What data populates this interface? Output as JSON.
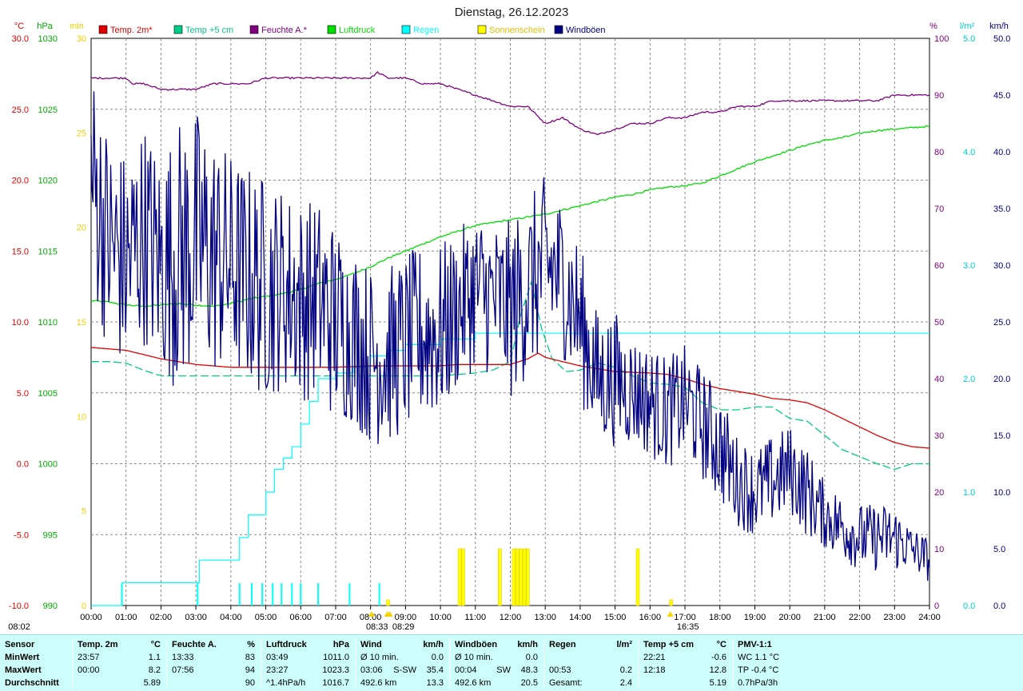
{
  "chart_data": {
    "type": "line",
    "title": "Dienstag, 26.12.2023",
    "x_axis": {
      "range_hours": [
        0,
        24
      ],
      "tick_labels": [
        "00:00",
        "01:00",
        "02:00",
        "03:00",
        "04:00",
        "05:00",
        "06:00",
        "07:00",
        "08:00",
        "09:00",
        "10:00",
        "11:00",
        "12:00",
        "13:00",
        "14:00",
        "15:00",
        "16:00",
        "17:00",
        "18:00",
        "19:00",
        "20:00",
        "21:00",
        "22:00",
        "23:00",
        "24:00"
      ],
      "markers": [
        {
          "label": "08:02",
          "hour": 8.03,
          "color": "#f6d300"
        },
        {
          "label": "08:33",
          "hour": 8.55,
          "color": "#f6d300"
        },
        {
          "label": "08:29",
          "hour": 8.48,
          "color": "#f6d300"
        },
        {
          "label": "16:35",
          "hour": 16.58,
          "color": "#f6d300"
        }
      ]
    },
    "y_axes": [
      {
        "id": "temp",
        "unit": "°C",
        "color": "#e00000",
        "range": [
          -10,
          30
        ],
        "tick_labels": [
          "30.0",
          "25.0",
          "20.0",
          "15.0",
          "10.0",
          "5.0",
          "0.0",
          "-5.0",
          "-10.0"
        ]
      },
      {
        "id": "press",
        "unit": "hPa",
        "color": "#00aa00",
        "range": [
          990,
          1030
        ],
        "tick_labels": [
          "1030",
          "1025",
          "1020",
          "1015",
          "1010",
          "1005",
          "1000",
          "995",
          "990"
        ]
      },
      {
        "id": "sun",
        "unit": "min",
        "color": "#f0d000",
        "range": [
          0,
          30
        ],
        "tick_labels": [
          "30",
          "25",
          "20",
          "15",
          "10",
          "5",
          "0"
        ]
      },
      {
        "id": "hum",
        "unit": "%",
        "color": "#800080",
        "range": [
          0,
          100
        ],
        "tick_labels": [
          "100",
          "90",
          "80",
          "70",
          "60",
          "50",
          "40",
          "30",
          "20",
          "10",
          "0"
        ]
      },
      {
        "id": "rain",
        "unit": "l/m²",
        "color": "#00cccc",
        "range": [
          0,
          5
        ],
        "tick_labels": [
          "5.0",
          "4.0",
          "3.0",
          "2.0",
          "1.0",
          "0.0"
        ]
      },
      {
        "id": "wind",
        "unit": "km/h",
        "color": "#000080",
        "range": [
          0,
          50
        ],
        "tick_labels": [
          "50.0",
          "45.0",
          "40.0",
          "35.0",
          "30.0",
          "25.0",
          "20.0",
          "15.0",
          "10.0",
          "5.0",
          "0.0"
        ]
      }
    ],
    "legend": [
      {
        "name": "Temp. 2m*",
        "color": "#e00000"
      },
      {
        "name": "Temp +5 cm",
        "color": "#00cc88"
      },
      {
        "name": "Feuchte A.*",
        "color": "#800080"
      },
      {
        "name": "Luftdruck",
        "color": "#00dd00"
      },
      {
        "name": "Regen",
        "color": "#00ffff"
      },
      {
        "name": "Sonnenschein",
        "color": "#ffff00"
      },
      {
        "name": "Windböen",
        "color": "#000080"
      }
    ],
    "series": [
      {
        "name": "Temp. 2m*",
        "axis": "temp",
        "color": "#e00000",
        "x": [
          0,
          0.5,
          1,
          1.5,
          2,
          2.5,
          3,
          4,
          5,
          6,
          7,
          8,
          9,
          10,
          10.5,
          11,
          12,
          12.5,
          12.8,
          13,
          13.5,
          14,
          15,
          16,
          16.5,
          17,
          17.5,
          18,
          18.5,
          19,
          19.5,
          20,
          20.5,
          21,
          21.5,
          22,
          22.5,
          23,
          23.5,
          24
        ],
        "y": [
          8.2,
          8.1,
          8.0,
          7.7,
          7.4,
          7.2,
          7.0,
          6.8,
          6.8,
          6.8,
          6.8,
          6.9,
          6.9,
          6.9,
          7.0,
          7.0,
          7.0,
          7.4,
          7.8,
          7.5,
          7.2,
          6.9,
          6.5,
          6.4,
          6.3,
          6.0,
          5.6,
          5.3,
          5.1,
          4.9,
          4.6,
          4.5,
          4.3,
          3.8,
          3.2,
          2.6,
          2.0,
          1.5,
          1.2,
          1.1
        ]
      },
      {
        "name": "Temp +5 cm",
        "axis": "temp",
        "color": "#00cc88",
        "dashed": true,
        "x": [
          0,
          0.5,
          1,
          1.5,
          2,
          2.5,
          3,
          4,
          5,
          6,
          7,
          8,
          9,
          10,
          11,
          11.5,
          12,
          12.3,
          12.6,
          12.9,
          13.2,
          13.6,
          14,
          14.5,
          15,
          15.5,
          16,
          16.5,
          17,
          17.5,
          18,
          18.5,
          19,
          19.5,
          20,
          20.5,
          21,
          21.5,
          22,
          22.5,
          23,
          23.5,
          24
        ],
        "y": [
          7.2,
          7.2,
          7.1,
          6.6,
          6.2,
          6.2,
          6.2,
          6.2,
          6.2,
          6.2,
          6.2,
          6.2,
          6.2,
          6.2,
          6.4,
          6.6,
          7.2,
          10.5,
          12.8,
          9.5,
          7.4,
          6.5,
          6.6,
          7.1,
          6.8,
          6.2,
          5.7,
          5.6,
          5.4,
          4.3,
          3.8,
          3.8,
          4.0,
          4.0,
          3.2,
          3.0,
          2.0,
          1.0,
          0.5,
          0.0,
          -0.4,
          0.0,
          0.0
        ]
      },
      {
        "name": "Feuchte A.*",
        "axis": "hum",
        "color": "#800080",
        "x": [
          0,
          0.5,
          1,
          1.2,
          1.5,
          2,
          2.5,
          3,
          3.5,
          4,
          4.5,
          5,
          6,
          7,
          8,
          8.2,
          8.5,
          9,
          9.5,
          10,
          10.5,
          11,
          11.5,
          12,
          12.5,
          13,
          13.5,
          14,
          14.5,
          15,
          15.5,
          16,
          16.5,
          17,
          17.5,
          18,
          18.5,
          19,
          19.5,
          20,
          20.5,
          21,
          21.5,
          22,
          22.5,
          23,
          23.5,
          24
        ],
        "y": [
          93,
          93,
          93,
          92,
          92,
          91,
          91,
          91,
          92,
          92,
          92,
          93,
          93,
          93,
          93,
          94,
          93,
          93,
          92,
          92,
          91,
          90,
          89,
          88,
          88,
          85,
          86,
          84,
          83,
          84,
          85,
          85,
          86,
          86,
          87,
          87,
          88,
          88,
          89,
          89,
          89,
          89,
          89,
          89,
          89,
          90,
          90,
          90
        ]
      },
      {
        "name": "Luftdruck",
        "axis": "press",
        "color": "#00dd00",
        "x": [
          0,
          0.5,
          1,
          1.5,
          2,
          2.5,
          3,
          3.5,
          4,
          4.5,
          5,
          5.5,
          6,
          6.5,
          7,
          7.5,
          8,
          8.5,
          9,
          9.5,
          10,
          10.5,
          11,
          11.5,
          12,
          12.5,
          13,
          13.5,
          14,
          14.5,
          15,
          15.5,
          16,
          16.5,
          17,
          17.5,
          18,
          18.5,
          19,
          19.5,
          20,
          20.5,
          21,
          21.5,
          22,
          22.5,
          23,
          23.5,
          24
        ],
        "y": [
          1011.5,
          1011.4,
          1011.2,
          1011.1,
          1011.2,
          1011.3,
          1011.2,
          1011.1,
          1011.3,
          1011.6,
          1011.8,
          1012.0,
          1012.3,
          1012.7,
          1013.0,
          1013.4,
          1013.9,
          1014.5,
          1015.0,
          1015.5,
          1016.0,
          1016.4,
          1016.8,
          1017.0,
          1017.2,
          1017.4,
          1017.6,
          1017.9,
          1018.2,
          1018.5,
          1018.8,
          1019.0,
          1019.3,
          1019.5,
          1019.6,
          1019.8,
          1020.3,
          1020.8,
          1021.3,
          1021.7,
          1022.1,
          1022.5,
          1022.8,
          1023.0,
          1023.3,
          1023.5,
          1023.6,
          1023.7,
          1023.8
        ]
      },
      {
        "name": "Regen",
        "axis": "rain",
        "color": "#00ffff",
        "step": true,
        "x": [
          0,
          0.88,
          1.0,
          2.0,
          3.05,
          3.1,
          4.0,
          4.25,
          4.5,
          4.75,
          5.0,
          5.25,
          5.5,
          5.75,
          6.0,
          6.25,
          6.5,
          7.0,
          7.5,
          8.0,
          8.5,
          9.0,
          10.0,
          11.0,
          24.0
        ],
        "y": [
          0,
          0.2,
          0.2,
          0.2,
          0.2,
          0.4,
          0.4,
          0.6,
          0.8,
          0.8,
          1.0,
          1.2,
          1.3,
          1.4,
          1.6,
          1.8,
          2.0,
          2.05,
          2.1,
          2.2,
          2.25,
          2.3,
          2.35,
          2.4,
          2.4
        ]
      },
      {
        "name": "Windböen",
        "axis": "wind",
        "color": "#000080",
        "jagged": true,
        "x": [
          0,
          0.5,
          1,
          1.5,
          2,
          2.5,
          3,
          3.5,
          4,
          4.5,
          5,
          5.5,
          6,
          6.5,
          7,
          7.5,
          8,
          8.5,
          9,
          9.5,
          10,
          10.5,
          11,
          11.5,
          12,
          12.5,
          13,
          13.5,
          14,
          14.5,
          15,
          15.5,
          16,
          16.5,
          17,
          17.5,
          18,
          18.5,
          19,
          19.5,
          20,
          20.5,
          21,
          21.5,
          22,
          22.5,
          23,
          23.5,
          24
        ],
        "y": [
          38,
          32,
          30,
          33,
          30,
          31,
          32,
          31,
          30,
          29,
          28,
          28,
          27,
          27,
          25,
          24,
          22,
          22,
          23,
          24,
          24,
          26,
          28,
          27,
          26,
          28,
          30,
          29,
          25,
          20,
          20,
          19,
          18,
          17,
          18,
          16,
          14,
          11,
          10,
          11,
          12,
          10,
          8,
          7,
          6,
          6,
          6,
          5,
          4
        ],
        "amplitude": [
          10,
          10,
          10,
          10,
          10,
          12,
          12,
          11,
          10,
          10,
          10,
          9,
          9,
          9,
          9,
          8,
          8,
          8,
          8,
          8,
          8,
          7,
          7,
          7,
          8,
          8,
          8,
          7,
          7,
          6,
          6,
          5,
          5,
          5,
          5,
          5,
          5,
          4,
          4,
          4,
          4,
          4,
          3,
          3,
          3,
          3,
          3,
          2,
          2
        ]
      },
      {
        "name": "Sonnenschein",
        "axis": "sun",
        "color": "#ffff00",
        "type": "bar",
        "x": [
          8.5,
          10.55,
          10.65,
          11.7,
          12.1,
          12.2,
          12.3,
          12.4,
          12.5,
          15.65,
          16.6
        ],
        "y": [
          0.3,
          3.0,
          3.0,
          3.0,
          3.0,
          3.0,
          3.0,
          3.0,
          3.0,
          3.0,
          0.3
        ]
      }
    ]
  },
  "stats": {
    "sections": [
      {
        "header": "Sensor",
        "rows": [
          "MinWert",
          "MaxWert",
          "Durchschnitt"
        ]
      },
      {
        "header": "Temp. 2m",
        "unit": "°C",
        "rows": [
          [
            "23:57",
            "1.1"
          ],
          [
            "00:00",
            "8.2"
          ],
          [
            "",
            "5.89"
          ]
        ]
      },
      {
        "header": "Feuchte A.",
        "unit": "%",
        "rows": [
          [
            "13:33",
            "83"
          ],
          [
            "07:56",
            "94"
          ],
          [
            "",
            "90"
          ]
        ]
      },
      {
        "header": "Luftdruck",
        "unit": "hPa",
        "rows": [
          [
            "03:49",
            "1011.0"
          ],
          [
            "23:27",
            "1023.3"
          ],
          [
            "^1.4hPa/h",
            "1016.7"
          ]
        ]
      },
      {
        "header": "Wind",
        "unit": "km/h",
        "rows": [
          [
            "Ø 10 min.",
            "",
            "0.0"
          ],
          [
            "03:06",
            "S-SW",
            "35.4"
          ],
          [
            "492.6 km",
            "",
            "13.3"
          ]
        ]
      },
      {
        "header": "Windböen",
        "unit": "km/h",
        "rows": [
          [
            "Ø 10 min.",
            "",
            "0.0"
          ],
          [
            "00:04",
            "SW",
            "48.3"
          ],
          [
            "492.6 km",
            "",
            "20.5"
          ]
        ]
      },
      {
        "header": "Regen",
        "unit": "l/m²",
        "rows": [
          [
            "",
            ""
          ],
          [
            "00:53",
            "0.2"
          ],
          [
            "Gesamt:",
            "2.4"
          ]
        ]
      },
      {
        "header": "Temp +5 cm",
        "unit": "°C",
        "rows": [
          [
            "22:21",
            "-0.6"
          ],
          [
            "12:18",
            "12.8"
          ],
          [
            "",
            "5.19"
          ]
        ]
      },
      {
        "header": "PMV-1:1",
        "unit": "",
        "rows": [
          "WC 1.1 °C",
          "TP -0.4 °C",
          "0.7hPa/3h"
        ]
      }
    ]
  }
}
